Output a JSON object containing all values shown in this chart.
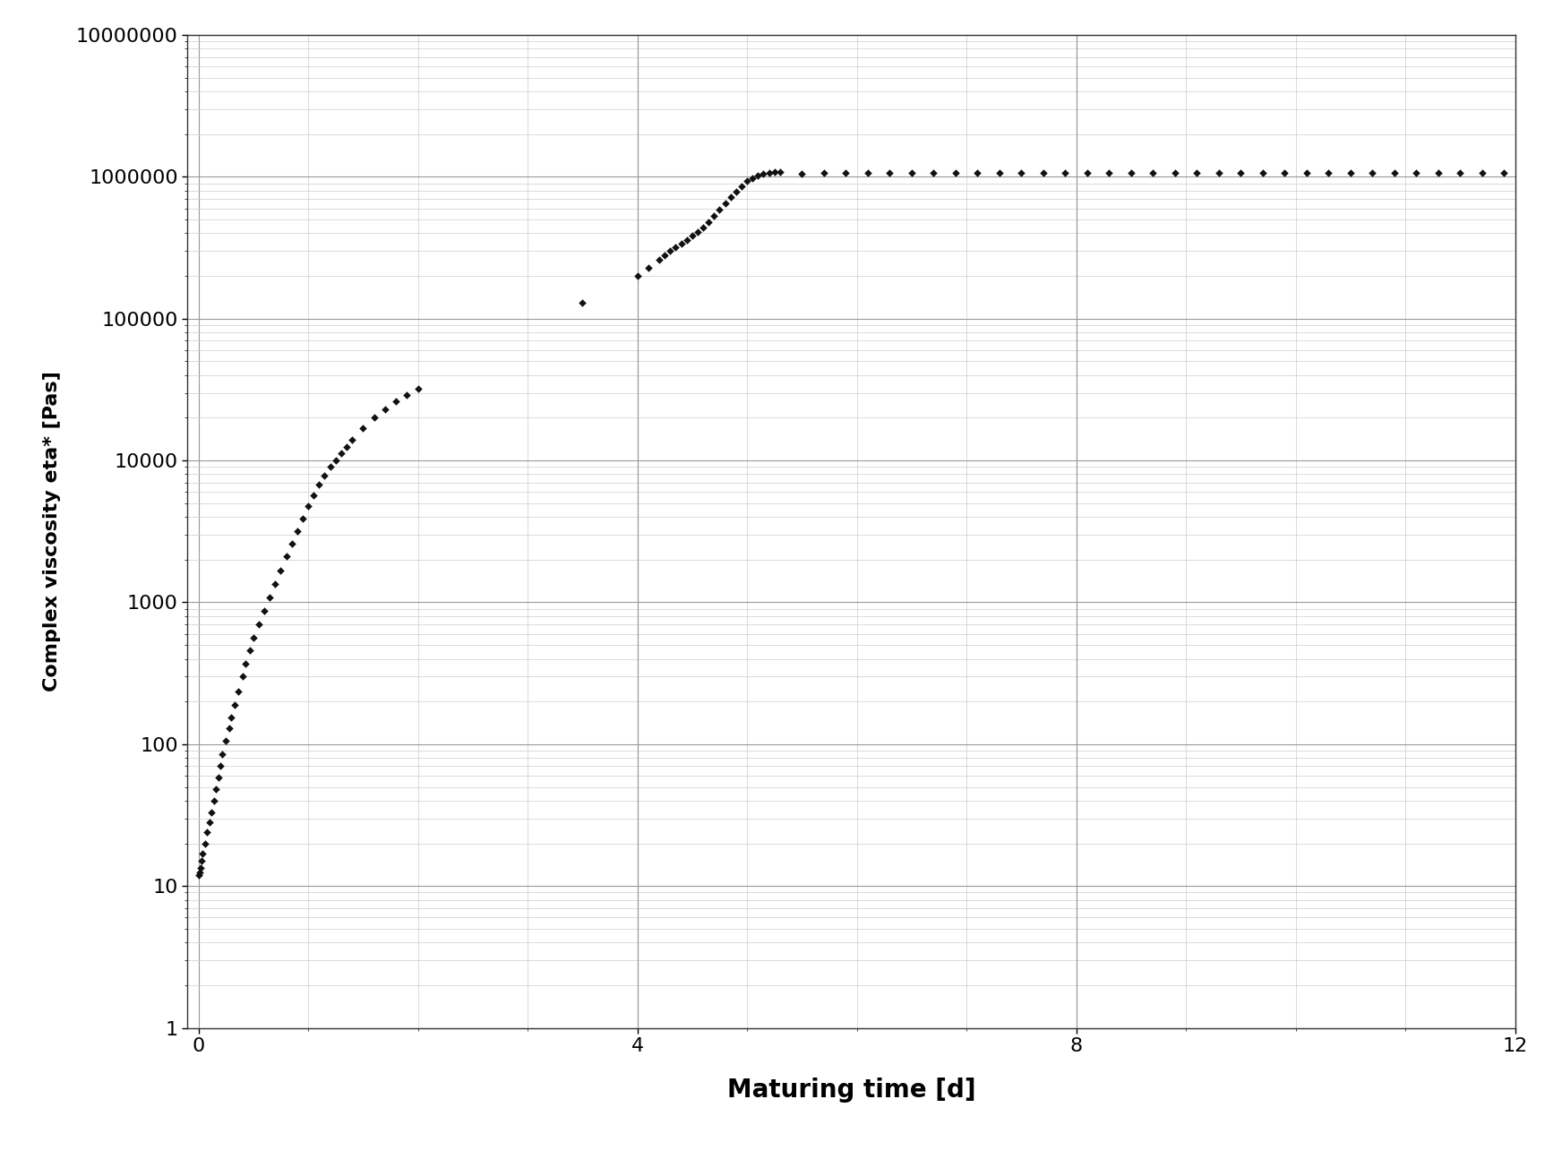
{
  "xlabel": "Maturing time [d]",
  "ylabel": "Complex viscosity eta* [Pas]",
  "xlim": [
    -0.1,
    12
  ],
  "ylim": [
    1,
    10000000
  ],
  "xticks": [
    0,
    4,
    8,
    12
  ],
  "yticks": [
    1,
    10,
    100,
    1000,
    10000,
    100000,
    1000000,
    10000000
  ],
  "marker": "D",
  "marker_color": "#111111",
  "marker_size": 4,
  "background_color": "#ffffff",
  "grid_major_color": "#999999",
  "grid_minor_color": "#cccccc",
  "data_x": [
    0.0,
    0.01,
    0.02,
    0.03,
    0.04,
    0.06,
    0.08,
    0.1,
    0.12,
    0.14,
    0.16,
    0.18,
    0.2,
    0.22,
    0.25,
    0.28,
    0.3,
    0.33,
    0.36,
    0.4,
    0.43,
    0.47,
    0.5,
    0.55,
    0.6,
    0.65,
    0.7,
    0.75,
    0.8,
    0.85,
    0.9,
    0.95,
    1.0,
    1.05,
    1.1,
    1.15,
    1.2,
    1.25,
    1.3,
    1.35,
    1.4,
    1.5,
    1.6,
    1.7,
    1.8,
    1.9,
    2.0,
    3.5,
    4.0,
    4.1,
    4.2,
    4.25,
    4.3,
    4.35,
    4.4,
    4.45,
    4.5,
    4.55,
    4.6,
    4.65,
    4.7,
    4.75,
    4.8,
    4.85,
    4.9,
    4.95,
    5.0,
    5.05,
    5.1,
    5.15,
    5.2,
    5.25,
    5.3,
    5.5,
    5.7,
    5.9,
    6.1,
    6.3,
    6.5,
    6.7,
    6.9,
    7.1,
    7.3,
    7.5,
    7.7,
    7.9,
    8.1,
    8.3,
    8.5,
    8.7,
    8.9,
    9.1,
    9.3,
    9.5,
    9.7,
    9.9,
    10.1,
    10.3,
    10.5,
    10.7,
    10.9,
    11.1,
    11.3,
    11.5,
    11.7,
    11.9
  ],
  "data_y": [
    12.0,
    12.5,
    13.5,
    15.0,
    17.0,
    20.0,
    24.0,
    28.0,
    33.0,
    40.0,
    48.0,
    58.0,
    70.0,
    85.0,
    105.0,
    130.0,
    155.0,
    190.0,
    235.0,
    300.0,
    370.0,
    460.0,
    560.0,
    700.0,
    870.0,
    1080.0,
    1350.0,
    1680.0,
    2100.0,
    2600.0,
    3200.0,
    3900.0,
    4800.0,
    5700.0,
    6800.0,
    7800.0,
    9000.0,
    10000.0,
    11200.0,
    12500.0,
    14000.0,
    17000.0,
    20000.0,
    23000.0,
    26000.0,
    29000.0,
    32000.0,
    130000.0,
    200000.0,
    230000.0,
    260000.0,
    280000.0,
    300000.0,
    320000.0,
    340000.0,
    360000.0,
    385000.0,
    410000.0,
    440000.0,
    480000.0,
    530000.0,
    590000.0,
    650000.0,
    720000.0,
    790000.0,
    860000.0,
    930000.0,
    980000.0,
    1020000.0,
    1050000.0,
    1070000.0,
    1080000.0,
    1090000.0,
    1050000.0,
    1060000.0,
    1070000.0,
    1060000.0,
    1070000.0,
    1060000.0,
    1070000.0,
    1060000.0,
    1065000.0,
    1070000.0,
    1060000.0,
    1065000.0,
    1070000.0,
    1065000.0,
    1070000.0,
    1060000.0,
    1065000.0,
    1060000.0,
    1065000.0,
    1070000.0,
    1060000.0,
    1065000.0,
    1070000.0,
    1060000.0,
    1065000.0,
    1060000.0,
    1065000.0,
    1060000.0,
    1065000.0,
    1060000.0,
    1065000.0,
    1060000.0,
    1065000.0
  ]
}
